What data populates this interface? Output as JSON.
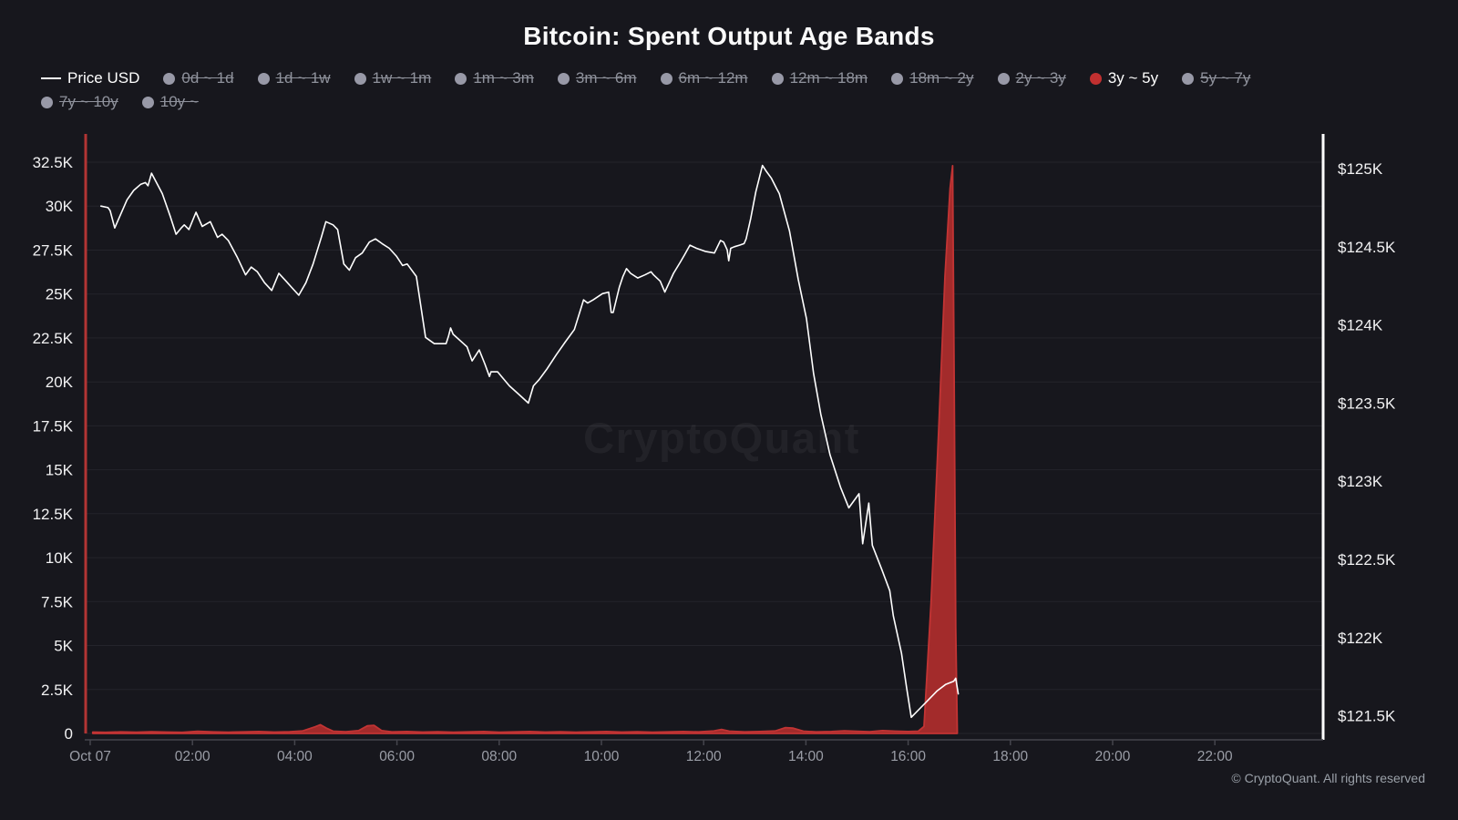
{
  "title": "Bitcoin: Spent Output Age Bands",
  "watermark_text": "CryptoQuant",
  "footer_text": "© CryptoQuant. All rights reserved",
  "legend": {
    "price_label": "Price USD",
    "bands": [
      {
        "label": "0d ~ 1d",
        "active": false
      },
      {
        "label": "1d ~ 1w",
        "active": false
      },
      {
        "label": "1w ~ 1m",
        "active": false
      },
      {
        "label": "1m ~ 3m",
        "active": false
      },
      {
        "label": "3m ~ 6m",
        "active": false
      },
      {
        "label": "6m ~ 12m",
        "active": false
      },
      {
        "label": "12m ~ 18m",
        "active": false
      },
      {
        "label": "18m ~ 2y",
        "active": false
      },
      {
        "label": "2y ~ 3y",
        "active": false
      },
      {
        "label": "3y ~ 5y",
        "active": true
      },
      {
        "label": "5y ~ 7y",
        "active": false
      },
      {
        "label": "7y ~ 10y",
        "active": false
      },
      {
        "label": "10y ~",
        "active": false
      }
    ]
  },
  "colors": {
    "background": "#17171d",
    "grid": "#24242b",
    "left_axis_line": "#b23434",
    "right_axis_line": "#ffffff",
    "price_line": "#ffffff",
    "band_fill": "#a32b2b",
    "band_stroke": "#c23434",
    "inactive_legend": "#8f929c",
    "active_dot": "#c13030",
    "axis_tick_label": "#f2f2f3",
    "x_tick_label": "#9a9da6",
    "baseline": "#45454d",
    "watermark": "rgba(255,255,255,0.05)"
  },
  "chart_data": {
    "type": "line",
    "title": "Bitcoin: Spent Output Age Bands",
    "grid": true,
    "legend_position": "top",
    "x_axis": {
      "unit": "time of day, Oct 07 (hours)",
      "range_hours": [
        0,
        24
      ],
      "tick_hours": [
        0,
        2,
        4,
        6,
        8,
        10,
        12,
        14,
        16,
        18,
        20,
        22
      ],
      "tick_labels": [
        "Oct 07",
        "02:00",
        "04:00",
        "06:00",
        "08:00",
        "10:00",
        "12:00",
        "14:00",
        "16:00",
        "18:00",
        "20:00",
        "22:00"
      ]
    },
    "left_axis": {
      "title": "Spent Output 3y ~ 5y",
      "max_tick": 32500,
      "tick_values": [
        0,
        2500,
        5000,
        7500,
        10000,
        12500,
        15000,
        17500,
        20000,
        22500,
        25000,
        27500,
        30000,
        32500
      ],
      "tick_labels": [
        "0",
        "2.5K",
        "5K",
        "7.5K",
        "10K",
        "12.5K",
        "15K",
        "17.5K",
        "20K",
        "22.5K",
        "25K",
        "27.5K",
        "30K",
        "32.5K"
      ]
    },
    "right_axis": {
      "title": "Price USD",
      "max": 125000,
      "min": 121500,
      "tick_values": [
        125000,
        124500,
        124000,
        123500,
        123000,
        122500,
        122000,
        121500
      ],
      "tick_labels": [
        "$125K",
        "$124.5K",
        "$124K",
        "$123.5K",
        "$123K",
        "$122.5K",
        "$122K",
        "$121.5K"
      ]
    },
    "series": [
      {
        "name": "Price USD",
        "type": "line",
        "axis": "right",
        "color": "#ffffff",
        "points": [
          [
            0.21,
            124760
          ],
          [
            0.35,
            124750
          ],
          [
            0.39,
            124730
          ],
          [
            0.48,
            124620
          ],
          [
            0.72,
            124800
          ],
          [
            0.85,
            124860
          ],
          [
            0.99,
            124900
          ],
          [
            1.08,
            124910
          ],
          [
            1.13,
            124890
          ],
          [
            1.2,
            124970
          ],
          [
            1.41,
            124840
          ],
          [
            1.57,
            124690
          ],
          [
            1.68,
            124580
          ],
          [
            1.78,
            124620
          ],
          [
            1.84,
            124640
          ],
          [
            1.93,
            124610
          ],
          [
            2.07,
            124720
          ],
          [
            2.19,
            124630
          ],
          [
            2.35,
            124660
          ],
          [
            2.49,
            124560
          ],
          [
            2.58,
            124580
          ],
          [
            2.7,
            124540
          ],
          [
            2.88,
            124430
          ],
          [
            3.04,
            124320
          ],
          [
            3.15,
            124370
          ],
          [
            3.27,
            124340
          ],
          [
            3.41,
            124270
          ],
          [
            3.55,
            124220
          ],
          [
            3.69,
            124330
          ],
          [
            3.83,
            124280
          ],
          [
            3.94,
            124240
          ],
          [
            4.08,
            124190
          ],
          [
            4.22,
            124270
          ],
          [
            4.36,
            124390
          ],
          [
            4.52,
            124560
          ],
          [
            4.61,
            124660
          ],
          [
            4.75,
            124640
          ],
          [
            4.84,
            124610
          ],
          [
            4.96,
            124390
          ],
          [
            5.07,
            124350
          ],
          [
            5.19,
            124430
          ],
          [
            5.32,
            124460
          ],
          [
            5.46,
            124530
          ],
          [
            5.58,
            124550
          ],
          [
            5.71,
            124520
          ],
          [
            5.85,
            124490
          ],
          [
            5.99,
            124440
          ],
          [
            6.11,
            124380
          ],
          [
            6.2,
            124390
          ],
          [
            6.38,
            124310
          ],
          [
            6.56,
            123920
          ],
          [
            6.73,
            123880
          ],
          [
            6.96,
            123880
          ],
          [
            7.01,
            123930
          ],
          [
            7.05,
            123980
          ],
          [
            7.1,
            123940
          ],
          [
            7.37,
            123860
          ],
          [
            7.47,
            123770
          ],
          [
            7.61,
            123840
          ],
          [
            7.72,
            123750
          ],
          [
            7.81,
            123670
          ],
          [
            7.84,
            123700
          ],
          [
            7.97,
            123700
          ],
          [
            8.02,
            123680
          ],
          [
            8.2,
            123610
          ],
          [
            8.37,
            123560
          ],
          [
            8.57,
            123500
          ],
          [
            8.67,
            123610
          ],
          [
            8.78,
            123650
          ],
          [
            8.94,
            123720
          ],
          [
            9.12,
            123810
          ],
          [
            9.29,
            123890
          ],
          [
            9.47,
            123970
          ],
          [
            9.65,
            124160
          ],
          [
            9.73,
            124140
          ],
          [
            9.84,
            124160
          ],
          [
            10.02,
            124200
          ],
          [
            10.14,
            124210
          ],
          [
            10.19,
            124080
          ],
          [
            10.23,
            124080
          ],
          [
            10.35,
            124240
          ],
          [
            10.42,
            124310
          ],
          [
            10.49,
            124360
          ],
          [
            10.57,
            124330
          ],
          [
            10.71,
            124300
          ],
          [
            10.85,
            124320
          ],
          [
            10.97,
            124340
          ],
          [
            11.02,
            124320
          ],
          [
            11.15,
            124280
          ],
          [
            11.24,
            124210
          ],
          [
            11.27,
            124230
          ],
          [
            11.41,
            124330
          ],
          [
            11.54,
            124400
          ],
          [
            11.63,
            124450
          ],
          [
            11.73,
            124510
          ],
          [
            11.86,
            124490
          ],
          [
            12.03,
            124470
          ],
          [
            12.21,
            124460
          ],
          [
            12.33,
            124540
          ],
          [
            12.39,
            124530
          ],
          [
            12.46,
            124480
          ],
          [
            12.49,
            124410
          ],
          [
            12.53,
            124490
          ],
          [
            12.6,
            124500
          ],
          [
            12.7,
            124510
          ],
          [
            12.79,
            124520
          ],
          [
            12.83,
            124550
          ],
          [
            12.92,
            124680
          ],
          [
            13.02,
            124850
          ],
          [
            13.15,
            125020
          ],
          [
            13.23,
            124980
          ],
          [
            13.32,
            124940
          ],
          [
            13.43,
            124870
          ],
          [
            13.48,
            124840
          ],
          [
            13.68,
            124600
          ],
          [
            13.85,
            124290
          ],
          [
            14.01,
            124040
          ],
          [
            14.15,
            123690
          ],
          [
            14.29,
            123430
          ],
          [
            14.47,
            123170
          ],
          [
            14.68,
            122960
          ],
          [
            14.84,
            122830
          ],
          [
            15.04,
            122920
          ],
          [
            15.11,
            122600
          ],
          [
            15.23,
            122860
          ],
          [
            15.3,
            122590
          ],
          [
            15.48,
            122440
          ],
          [
            15.64,
            122300
          ],
          [
            15.71,
            122140
          ],
          [
            15.87,
            121900
          ],
          [
            15.97,
            121680
          ],
          [
            16.06,
            121490
          ],
          [
            16.24,
            121550
          ],
          [
            16.42,
            121610
          ],
          [
            16.57,
            121660
          ],
          [
            16.73,
            121700
          ],
          [
            16.89,
            121720
          ],
          [
            16.93,
            121740
          ],
          [
            16.98,
            121640
          ]
        ]
      },
      {
        "name": "3y ~ 5y",
        "type": "area",
        "axis": "left",
        "fill": "#a32b2b",
        "stroke": "#c23434",
        "points": [
          [
            0.05,
            80
          ],
          [
            0.3,
            60
          ],
          [
            0.6,
            90
          ],
          [
            0.9,
            70
          ],
          [
            1.2,
            100
          ],
          [
            1.5,
            80
          ],
          [
            1.8,
            60
          ],
          [
            2.1,
            120
          ],
          [
            2.4,
            90
          ],
          [
            2.7,
            70
          ],
          [
            3.0,
            90
          ],
          [
            3.3,
            110
          ],
          [
            3.6,
            80
          ],
          [
            3.9,
            100
          ],
          [
            4.15,
            140
          ],
          [
            4.4,
            380
          ],
          [
            4.5,
            500
          ],
          [
            4.62,
            300
          ],
          [
            4.75,
            130
          ],
          [
            5.0,
            100
          ],
          [
            5.25,
            160
          ],
          [
            5.42,
            430
          ],
          [
            5.55,
            460
          ],
          [
            5.7,
            160
          ],
          [
            5.9,
            90
          ],
          [
            6.2,
            110
          ],
          [
            6.5,
            80
          ],
          [
            6.8,
            100
          ],
          [
            7.1,
            70
          ],
          [
            7.4,
            90
          ],
          [
            7.7,
            110
          ],
          [
            8.0,
            70
          ],
          [
            8.3,
            90
          ],
          [
            8.6,
            110
          ],
          [
            8.9,
            80
          ],
          [
            9.2,
            100
          ],
          [
            9.5,
            70
          ],
          [
            9.8,
            90
          ],
          [
            10.1,
            110
          ],
          [
            10.4,
            80
          ],
          [
            10.7,
            100
          ],
          [
            11.0,
            70
          ],
          [
            11.3,
            90
          ],
          [
            11.6,
            110
          ],
          [
            11.9,
            90
          ],
          [
            12.2,
            140
          ],
          [
            12.35,
            230
          ],
          [
            12.5,
            130
          ],
          [
            12.8,
            90
          ],
          [
            13.1,
            110
          ],
          [
            13.4,
            140
          ],
          [
            13.6,
            330
          ],
          [
            13.75,
            300
          ],
          [
            13.95,
            130
          ],
          [
            14.2,
            90
          ],
          [
            14.5,
            110
          ],
          [
            14.75,
            150
          ],
          [
            15.0,
            120
          ],
          [
            15.25,
            100
          ],
          [
            15.5,
            160
          ],
          [
            15.75,
            130
          ],
          [
            16.0,
            110
          ],
          [
            16.2,
            130
          ],
          [
            16.31,
            400
          ],
          [
            16.45,
            7500
          ],
          [
            16.6,
            17500
          ],
          [
            16.72,
            26000
          ],
          [
            16.82,
            31000
          ],
          [
            16.87,
            32300
          ],
          [
            16.9,
            20000
          ],
          [
            16.93,
            6000
          ],
          [
            16.96,
            150
          ]
        ]
      }
    ]
  }
}
